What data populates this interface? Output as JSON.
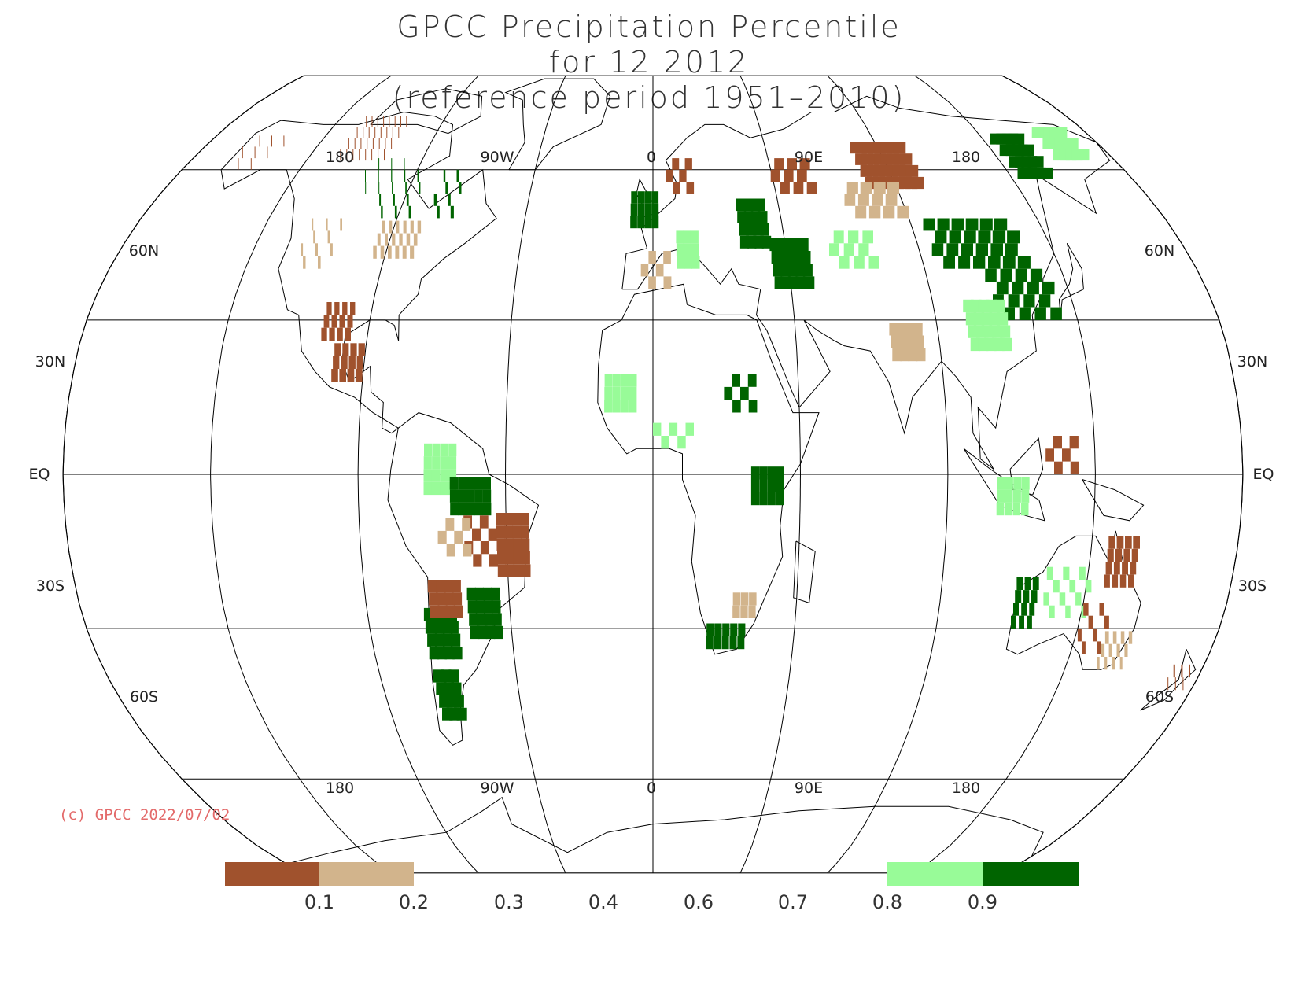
{
  "title": {
    "line1": "GPCC Precipitation Percentile",
    "line2": "for 12 2012",
    "line3": "(reference period 1951–2010)"
  },
  "copyright": "(c) GPCC 2022/07/02",
  "map": {
    "projection": "Robinson",
    "lon_labels": [
      "180",
      "90W",
      "0",
      "90E",
      "180"
    ],
    "lat_labels_left": [
      "60N",
      "30N",
      "EQ",
      "30S",
      "60S"
    ],
    "lat_labels_right": [
      "60N",
      "30N",
      "EQ",
      "30S",
      "60S"
    ]
  },
  "colorbar": {
    "colors": {
      "dry_strong": "#a0522d",
      "dry": "#d2b48c",
      "wet": "#98fb98",
      "wet_strong": "#006400"
    },
    "tick_labels": [
      "0.1",
      "0.2",
      "0.3",
      "0.4",
      "0.6",
      "0.7",
      "0.8",
      "0.9"
    ]
  }
}
